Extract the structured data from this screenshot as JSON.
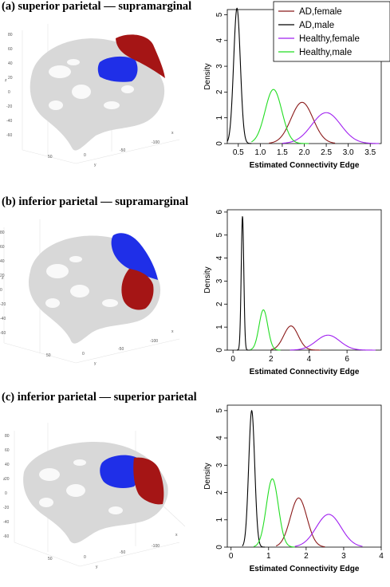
{
  "panels": [
    {
      "title": "(a) superior parietal — supramarginal"
    },
    {
      "title": "(b) inferior parietal — supramarginal"
    },
    {
      "title": "(c) inferior parietal — superior parietal"
    }
  ],
  "brain_axis_labels": {
    "z": "z",
    "y": "y",
    "x": "x",
    "z_ticks": [
      "80",
      "60",
      "40",
      "20",
      "0",
      "-20",
      "-40",
      "-60"
    ],
    "y_ticks": [
      "50",
      "0",
      "-50",
      "-100"
    ]
  },
  "colors": {
    "AD,female": "#8b1a1a",
    "AD,male": "#000000",
    "Healthy,female": "#a020f0",
    "Healthy,male": "#22dd22",
    "region_blue": "#1f2fe8",
    "region_red": "#a51515",
    "brain": "#d8d8d8"
  },
  "chart_data": [
    {
      "type": "line",
      "title": "",
      "xlabel": "Estimated Connectivity Edge",
      "ylabel": "Density",
      "xlim": [
        0.25,
        3.75
      ],
      "ylim": [
        0,
        5.2
      ],
      "xticks": [
        0.5,
        1.0,
        1.5,
        2.0,
        2.5,
        3.0,
        3.5
      ],
      "xtick_labels": [
        "0.5",
        "1.0",
        "1.5",
        "2.0",
        "2.5",
        "3.0",
        "3.5"
      ],
      "yticks": [
        0,
        1,
        2,
        3,
        4,
        5
      ],
      "ytick_labels": [
        "0",
        "1",
        "2",
        "3",
        "4",
        "5"
      ],
      "legend": "top-right",
      "series": [
        {
          "name": "AD,female",
          "mean": 1.95,
          "sd": 0.25,
          "peak": 1.6,
          "range": [
            1.2,
            2.7
          ]
        },
        {
          "name": "AD,male",
          "mean": 0.47,
          "sd": 0.076,
          "peak": 5.25,
          "range": [
            0.25,
            0.8
          ]
        },
        {
          "name": "Healthy,female",
          "mean": 2.5,
          "sd": 0.33,
          "peak": 1.2,
          "range": [
            1.5,
            3.7
          ]
        },
        {
          "name": "Healthy,male",
          "mean": 1.3,
          "sd": 0.19,
          "peak": 2.1,
          "range": [
            0.8,
            2.1
          ]
        }
      ]
    },
    {
      "type": "line",
      "title": "",
      "xlabel": "Estimated Connectivity Edge",
      "ylabel": "Density",
      "xlim": [
        -0.3,
        7.8
      ],
      "ylim": [
        0,
        6.1
      ],
      "xticks": [
        0,
        2,
        4,
        6
      ],
      "xtick_labels": [
        "0",
        "2",
        "4",
        "6"
      ],
      "yticks": [
        0,
        1,
        2,
        3,
        4,
        5,
        6
      ],
      "ytick_labels": [
        "0",
        "1",
        "2",
        "3",
        "4",
        "5",
        "6"
      ],
      "legend": "none",
      "series": [
        {
          "name": "AD,female",
          "mean": 3.05,
          "sd": 0.38,
          "peak": 1.05,
          "range": [
            2.0,
            4.6
          ]
        },
        {
          "name": "AD,male",
          "mean": 0.5,
          "sd": 0.068,
          "peak": 5.8,
          "range": [
            0.2,
            0.9
          ]
        },
        {
          "name": "Healthy,female",
          "mean": 5.0,
          "sd": 0.62,
          "peak": 0.65,
          "range": [
            3.0,
            7.5
          ]
        },
        {
          "name": "Healthy,male",
          "mean": 1.6,
          "sd": 0.23,
          "peak": 1.75,
          "range": [
            0.9,
            2.5
          ]
        }
      ]
    },
    {
      "type": "line",
      "title": "",
      "xlabel": "Estimated Connectivity Edge",
      "ylabel": "Density",
      "xlim": [
        -0.1,
        4.0
      ],
      "ylim": [
        0,
        5.2
      ],
      "xticks": [
        0,
        1,
        2,
        3,
        4
      ],
      "xtick_labels": [
        "0",
        "1",
        "2",
        "3",
        "4"
      ],
      "yticks": [
        0,
        1,
        2,
        3,
        4,
        5
      ],
      "ytick_labels": [
        "0",
        "1",
        "2",
        "3",
        "4",
        "5"
      ],
      "legend": "none",
      "series": [
        {
          "name": "AD,female",
          "mean": 1.8,
          "sd": 0.22,
          "peak": 1.8,
          "range": [
            1.2,
            2.5
          ]
        },
        {
          "name": "AD,male",
          "mean": 0.55,
          "sd": 0.08,
          "peak": 5.0,
          "range": [
            0.3,
            0.9
          ]
        },
        {
          "name": "Healthy,female",
          "mean": 2.6,
          "sd": 0.33,
          "peak": 1.2,
          "range": [
            1.7,
            3.5
          ]
        },
        {
          "name": "Healthy,male",
          "mean": 1.1,
          "sd": 0.16,
          "peak": 2.5,
          "range": [
            0.6,
            1.7
          ]
        }
      ]
    }
  ]
}
